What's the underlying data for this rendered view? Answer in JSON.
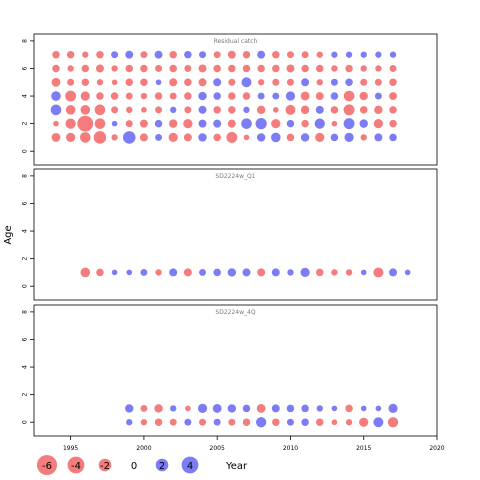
{
  "chart_data": {
    "type": "scatter",
    "subtype": "bubble residual plot",
    "ylabel": "Age",
    "xlabel": "Year",
    "xlim": [
      1992.5,
      2020
    ],
    "x_ticks": [
      1995,
      2000,
      2005,
      2010,
      2015,
      2020
    ],
    "ylim": [
      -1,
      8.5
    ],
    "y_ticks": [
      0,
      2,
      4,
      6,
      8
    ],
    "positive_color": "#5050f0",
    "negative_color": "#f05050",
    "legend": {
      "values": [
        -6,
        -4,
        -2,
        0,
        2,
        4
      ],
      "labels": [
        "-6",
        "-4",
        "-2",
        "0",
        "2",
        "4"
      ],
      "title": "Year"
    },
    "panels": [
      {
        "title": "Residual catch",
        "ages": [
          1,
          2,
          3,
          4,
          5,
          6,
          7
        ],
        "years": [
          1994,
          1995,
          1996,
          1997,
          1998,
          1999,
          2000,
          2001,
          2002,
          2003,
          2004,
          2005,
          2006,
          2007,
          2008,
          2009,
          2010,
          2011,
          2012,
          2013,
          2014,
          2015,
          2016,
          2017
        ],
        "residuals": [
          [
            -0.8,
            -0.9,
            -1.3,
            -2.0,
            -0.3,
            2.0,
            -0.6,
            0.4,
            -0.9,
            -0.6,
            0.7,
            -0.5,
            -1.4,
            -0.2,
            0.7,
            1.0,
            -0.5,
            0.7,
            -0.9,
            0.5,
            0.9,
            -0.3,
            0.6,
            0.5
          ],
          [
            -0.2,
            -1.2,
            -3.5,
            -1.3,
            0.2,
            -0.4,
            -0.6,
            0.5,
            -0.7,
            -0.9,
            0.6,
            0.6,
            -0.6,
            1.3,
            1.5,
            -0.9,
            0.5,
            -0.5,
            1.2,
            -0.2,
            1.4,
            0.7,
            -0.9,
            -0.5
          ],
          [
            1.3,
            -1.0,
            -1.0,
            -1.3,
            -0.4,
            -0.3,
            -0.2,
            -0.4,
            0.3,
            -0.4,
            0.6,
            -0.5,
            -0.5,
            0.3,
            -0.7,
            -0.2,
            -1.1,
            -0.7,
            0.6,
            -0.5,
            -1.4,
            -0.5,
            -0.7,
            -0.5
          ],
          [
            1.0,
            -1.4,
            -0.9,
            -0.5,
            -0.5,
            -0.4,
            -0.3,
            -0.5,
            -0.4,
            -0.5,
            0.7,
            0.5,
            -0.5,
            -0.5,
            0.4,
            0.4,
            0.9,
            -0.8,
            -0.6,
            0.5,
            -1.3,
            -0.7,
            0.4,
            -0.6
          ],
          [
            -0.8,
            -0.4,
            -0.5,
            -0.3,
            -0.2,
            -0.5,
            -0.5,
            0.2,
            -0.6,
            -0.5,
            -0.6,
            0.6,
            -0.4,
            1.1,
            -0.3,
            -0.4,
            -0.4,
            0.6,
            -0.3,
            0.4,
            0.5,
            -0.4,
            -0.4,
            -0.5
          ],
          [
            -0.5,
            -0.3,
            -0.5,
            -0.6,
            -0.3,
            -0.5,
            -0.5,
            -0.4,
            -0.5,
            -0.4,
            -0.6,
            -0.5,
            -0.5,
            -0.5,
            -0.5,
            -0.5,
            -0.6,
            -0.5,
            -0.5,
            -0.3,
            -0.5,
            -0.3,
            -0.3,
            -0.4
          ],
          [
            -0.5,
            -0.5,
            -0.3,
            -0.5,
            0.4,
            0.6,
            -0.4,
            0.6,
            -0.5,
            0.5,
            0.4,
            -0.4,
            -0.6,
            -0.5,
            0.6,
            -0.5,
            -0.4,
            -0.4,
            -0.3,
            0.3,
            0.3,
            0.3,
            0.3,
            0.3
          ]
        ]
      },
      {
        "title": "SD2224w_Q1",
        "ages": [
          1
        ],
        "years": [
          1996,
          1997,
          1998,
          1999,
          2000,
          2001,
          2002,
          2003,
          2004,
          2005,
          2006,
          2007,
          2008,
          2009,
          2010,
          2011,
          2012,
          2013,
          2014,
          2015,
          2016,
          2017,
          2018
        ],
        "residuals": [
          [
            -1.0,
            -0.5,
            0.2,
            0.2,
            0.4,
            -0.3,
            0.6,
            -0.6,
            0.4,
            0.5,
            0.7,
            0.6,
            -0.6,
            0.6,
            0.3,
            0.9,
            -0.5,
            -0.3,
            -0.3,
            0.2,
            -1.1,
            0.6,
            0.2
          ]
        ]
      },
      {
        "title": "SD2224w_4Q",
        "ages": [
          0,
          1
        ],
        "years": [
          1999,
          2000,
          2001,
          2002,
          2003,
          2004,
          2005,
          2006,
          2007,
          2008,
          2009,
          2010,
          2011,
          2012,
          2013,
          2014,
          2015,
          2016,
          2017
        ],
        "residuals": [
          [
            0.3,
            -0.3,
            -0.5,
            -0.4,
            0.4,
            -0.4,
            0.4,
            -0.4,
            -0.5,
            1.2,
            -0.5,
            0.4,
            0.5,
            -0.5,
            -0.2,
            -0.3,
            -0.9,
            1.1,
            -1.2
          ],
          [
            0.7,
            -0.4,
            -0.7,
            0.3,
            -0.2,
            0.9,
            0.8,
            0.7,
            0.5,
            -0.8,
            0.6,
            0.5,
            0.5,
            0.3,
            0.2,
            -0.5,
            0.2,
            0.2,
            0.9
          ]
        ]
      }
    ]
  }
}
